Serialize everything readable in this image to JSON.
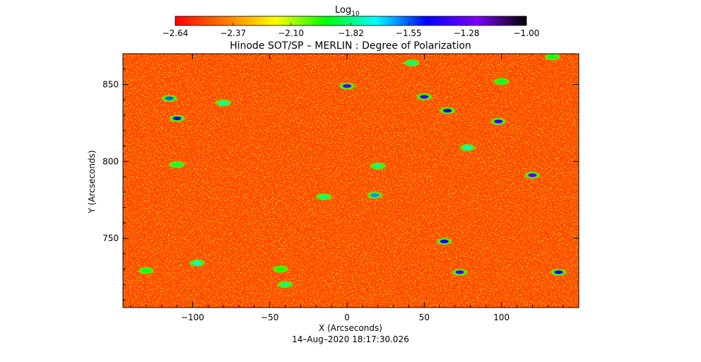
{
  "chart_data": {
    "type": "heatmap",
    "title": "Hinode SOT/SP – MERLIN : Degree of Polarization",
    "xlabel": "X (Arcseconds)",
    "ylabel": "Y (Arcseconds)",
    "xlim": [
      -145,
      150
    ],
    "ylim": [
      705,
      870
    ],
    "x_ticks": [
      -100,
      -50,
      0,
      50,
      100
    ],
    "x_tick_labels": [
      "−100",
      "−50",
      "0",
      "50",
      "100"
    ],
    "y_ticks": [
      750,
      800,
      850
    ],
    "y_tick_labels": [
      "750",
      "800",
      "850"
    ],
    "colorbar": {
      "label": "Log",
      "label_sub": "10",
      "range": [
        -2.64,
        -1.0
      ],
      "ticks": [
        -2.64,
        -2.37,
        -2.1,
        -1.82,
        -1.55,
        -1.28,
        -1.0
      ],
      "tick_labels": [
        "−2.64",
        "−2.37",
        "−2.10",
        "−1.82",
        "−1.55",
        "−1.28",
        "−1.00"
      ],
      "colormap": [
        "#ff0000",
        "#ff7a00",
        "#ffff00",
        "#00ff00",
        "#00ffff",
        "#0000ff",
        "#7f00ff",
        "#000000"
      ]
    },
    "background_level": -2.52,
    "features": [
      {
        "x": 0,
        "y": 849,
        "value": -1.35
      },
      {
        "x": 50,
        "y": 842,
        "value": -1.4
      },
      {
        "x": 65,
        "y": 833,
        "value": -1.45
      },
      {
        "x": 98,
        "y": 826,
        "value": -1.38
      },
      {
        "x": -110,
        "y": 828,
        "value": -1.45
      },
      {
        "x": -115,
        "y": 841,
        "value": -1.55
      },
      {
        "x": -80,
        "y": 838,
        "value": -1.75
      },
      {
        "x": 120,
        "y": 791,
        "value": -1.3
      },
      {
        "x": 18,
        "y": 778,
        "value": -1.6
      },
      {
        "x": -15,
        "y": 777,
        "value": -1.8
      },
      {
        "x": 63,
        "y": 748,
        "value": -1.45
      },
      {
        "x": 73,
        "y": 728,
        "value": -1.35
      },
      {
        "x": 137,
        "y": 728,
        "value": -1.45
      },
      {
        "x": -97,
        "y": 734,
        "value": -1.7
      },
      {
        "x": -40,
        "y": 720,
        "value": -1.8
      },
      {
        "x": 20,
        "y": 797,
        "value": -1.8
      },
      {
        "x": 78,
        "y": 809,
        "value": -1.75
      },
      {
        "x": -110,
        "y": 798,
        "value": -1.85
      },
      {
        "x": 100,
        "y": 852,
        "value": -1.9
      },
      {
        "x": 133,
        "y": 868,
        "value": -1.9
      },
      {
        "x": 42,
        "y": 864,
        "value": -1.8
      },
      {
        "x": -130,
        "y": 729,
        "value": -1.9
      },
      {
        "x": -43,
        "y": 730,
        "value": -1.95
      }
    ]
  },
  "footer": {
    "timestamp": "14–Aug–2020 18:17:30.026"
  }
}
